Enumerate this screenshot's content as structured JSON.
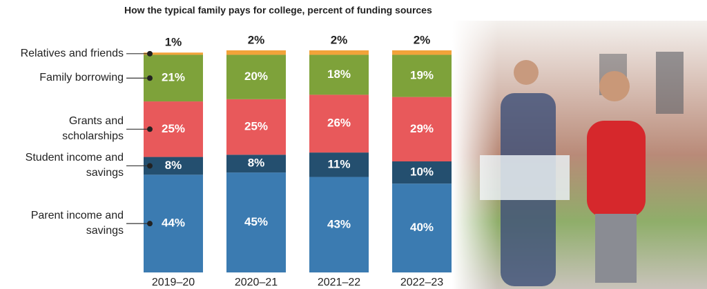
{
  "chart_data": {
    "type": "stacked_bar",
    "title": "How the typical family pays for college, percent of funding sources",
    "categories": [
      "2019–20",
      "2020–21",
      "2021–22",
      "2022–23"
    ],
    "series": [
      {
        "name": "Parent income and savings",
        "color": "#3b7bb1",
        "values": [
          44,
          45,
          43,
          40
        ],
        "value_labels": [
          "44%",
          "45%",
          "43%",
          "40%"
        ]
      },
      {
        "name": "Student income and savings",
        "color": "#244f6f",
        "values": [
          8,
          8,
          11,
          10
        ],
        "value_labels": [
          "8%",
          "8%",
          "11%",
          "10%"
        ]
      },
      {
        "name": "Grants and scholarships",
        "color": "#e8595b",
        "values": [
          25,
          25,
          26,
          29
        ],
        "value_labels": [
          "25%",
          "25%",
          "26%",
          "29%"
        ]
      },
      {
        "name": "Family borrowing",
        "color": "#7ea23a",
        "values": [
          21,
          20,
          18,
          19
        ],
        "value_labels": [
          "21%",
          "20%",
          "18%",
          "19%"
        ]
      },
      {
        "name": "Relatives and friends",
        "color": "#f2a33a",
        "values": [
          1,
          2,
          2,
          2
        ],
        "value_labels": [
          "1%",
          "2%",
          "2%",
          "2%"
        ]
      }
    ]
  }
}
